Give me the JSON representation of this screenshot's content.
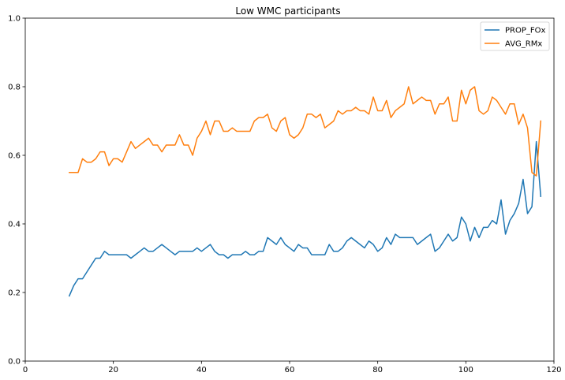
{
  "chart_data": {
    "type": "line",
    "title": "Low WMC participants",
    "xlabel": "",
    "ylabel": "",
    "xlim": [
      0,
      120
    ],
    "ylim": [
      0.0,
      1.0
    ],
    "xticks": [
      0,
      20,
      40,
      60,
      80,
      100,
      120
    ],
    "yticks": [
      0.0,
      0.2,
      0.4,
      0.6,
      0.8,
      1.0
    ],
    "xtick_labels": [
      "0",
      "20",
      "40",
      "60",
      "80",
      "100",
      "120"
    ],
    "ytick_labels": [
      "0.0",
      "0.2",
      "0.4",
      "0.6",
      "0.8",
      "1.0"
    ],
    "grid": false,
    "legend_position": "top-right",
    "series": [
      {
        "name": "PROP_FOx",
        "color": "#1f77b4",
        "x": [
          10,
          11,
          12,
          13,
          14,
          15,
          16,
          17,
          18,
          19,
          20,
          21,
          22,
          23,
          24,
          25,
          26,
          27,
          28,
          29,
          30,
          31,
          32,
          33,
          34,
          35,
          36,
          37,
          38,
          39,
          40,
          41,
          42,
          43,
          44,
          45,
          46,
          47,
          48,
          49,
          50,
          51,
          52,
          53,
          54,
          55,
          56,
          57,
          58,
          59,
          60,
          61,
          62,
          63,
          64,
          65,
          66,
          67,
          68,
          69,
          70,
          71,
          72,
          73,
          74,
          75,
          76,
          77,
          78,
          79,
          80,
          81,
          82,
          83,
          84,
          85,
          86,
          87,
          88,
          89,
          90,
          91,
          92,
          93,
          94,
          95,
          96,
          97,
          98,
          99,
          100,
          101,
          102,
          103,
          104,
          105,
          106,
          107,
          108,
          109,
          110,
          111,
          112,
          113,
          114,
          115,
          116,
          117
        ],
        "y": [
          0.19,
          0.22,
          0.24,
          0.24,
          0.26,
          0.28,
          0.3,
          0.3,
          0.32,
          0.31,
          0.31,
          0.31,
          0.31,
          0.31,
          0.3,
          0.31,
          0.32,
          0.33,
          0.32,
          0.32,
          0.33,
          0.34,
          0.33,
          0.32,
          0.31,
          0.32,
          0.32,
          0.32,
          0.32,
          0.33,
          0.32,
          0.33,
          0.34,
          0.32,
          0.31,
          0.31,
          0.3,
          0.31,
          0.31,
          0.31,
          0.32,
          0.31,
          0.31,
          0.32,
          0.32,
          0.36,
          0.35,
          0.34,
          0.36,
          0.34,
          0.33,
          0.32,
          0.34,
          0.33,
          0.33,
          0.31,
          0.31,
          0.31,
          0.31,
          0.34,
          0.32,
          0.32,
          0.33,
          0.35,
          0.36,
          0.35,
          0.34,
          0.33,
          0.35,
          0.34,
          0.32,
          0.33,
          0.36,
          0.34,
          0.37,
          0.36,
          0.36,
          0.36,
          0.36,
          0.34,
          0.35,
          0.36,
          0.37,
          0.32,
          0.33,
          0.35,
          0.37,
          0.35,
          0.36,
          0.42,
          0.4,
          0.35,
          0.39,
          0.36,
          0.39,
          0.39,
          0.41,
          0.4,
          0.47,
          0.37,
          0.41,
          0.43,
          0.46,
          0.53,
          0.43,
          0.45,
          0.64,
          0.48
        ]
      },
      {
        "name": "AVG_RMx",
        "color": "#ff7f0e",
        "x": [
          10,
          11,
          12,
          13,
          14,
          15,
          16,
          17,
          18,
          19,
          20,
          21,
          22,
          23,
          24,
          25,
          26,
          27,
          28,
          29,
          30,
          31,
          32,
          33,
          34,
          35,
          36,
          37,
          38,
          39,
          40,
          41,
          42,
          43,
          44,
          45,
          46,
          47,
          48,
          49,
          50,
          51,
          52,
          53,
          54,
          55,
          56,
          57,
          58,
          59,
          60,
          61,
          62,
          63,
          64,
          65,
          66,
          67,
          68,
          69,
          70,
          71,
          72,
          73,
          74,
          75,
          76,
          77,
          78,
          79,
          80,
          81,
          82,
          83,
          84,
          85,
          86,
          87,
          88,
          89,
          90,
          91,
          92,
          93,
          94,
          95,
          96,
          97,
          98,
          99,
          100,
          101,
          102,
          103,
          104,
          105,
          106,
          107,
          108,
          109,
          110,
          111,
          112,
          113,
          114,
          115,
          116,
          117
        ],
        "y": [
          0.55,
          0.55,
          0.55,
          0.59,
          0.58,
          0.58,
          0.59,
          0.61,
          0.61,
          0.57,
          0.59,
          0.59,
          0.58,
          0.61,
          0.64,
          0.62,
          0.63,
          0.64,
          0.65,
          0.63,
          0.63,
          0.61,
          0.63,
          0.63,
          0.63,
          0.66,
          0.63,
          0.63,
          0.6,
          0.65,
          0.67,
          0.7,
          0.66,
          0.7,
          0.7,
          0.67,
          0.67,
          0.68,
          0.67,
          0.67,
          0.67,
          0.67,
          0.7,
          0.71,
          0.71,
          0.72,
          0.68,
          0.67,
          0.7,
          0.71,
          0.66,
          0.65,
          0.66,
          0.68,
          0.72,
          0.72,
          0.71,
          0.72,
          0.68,
          0.69,
          0.7,
          0.73,
          0.72,
          0.73,
          0.73,
          0.74,
          0.73,
          0.73,
          0.72,
          0.77,
          0.73,
          0.73,
          0.76,
          0.71,
          0.73,
          0.74,
          0.75,
          0.8,
          0.75,
          0.76,
          0.77,
          0.76,
          0.76,
          0.72,
          0.75,
          0.75,
          0.77,
          0.7,
          0.7,
          0.79,
          0.75,
          0.79,
          0.8,
          0.73,
          0.72,
          0.73,
          0.77,
          0.76,
          0.74,
          0.72,
          0.75,
          0.75,
          0.69,
          0.72,
          0.68,
          0.55,
          0.54,
          0.7
        ]
      }
    ]
  }
}
